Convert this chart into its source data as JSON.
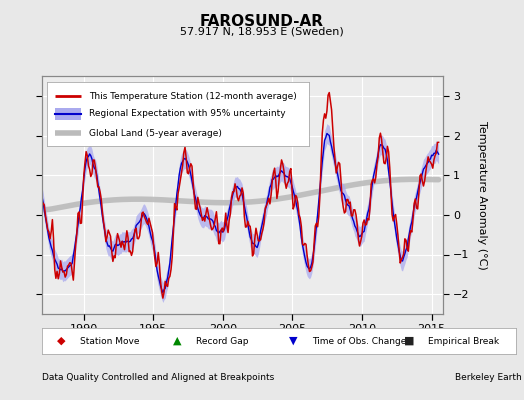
{
  "title": "FAROSUND-AR",
  "subtitle": "57.917 N, 18.953 E (Sweden)",
  "ylabel": "Temperature Anomaly (°C)",
  "footer_left": "Data Quality Controlled and Aligned at Breakpoints",
  "footer_right": "Berkeley Earth",
  "xlim": [
    1987.0,
    2015.8
  ],
  "ylim": [
    -2.5,
    3.5
  ],
  "yticks": [
    -2,
    -1,
    0,
    1,
    2,
    3
  ],
  "xticks": [
    1990,
    1995,
    2000,
    2005,
    2010,
    2015
  ],
  "bg_color": "#e8e8e8",
  "plot_bg_color": "#ececec",
  "grid_color": "#ffffff",
  "station_color": "#cc0000",
  "regional_color": "#0000cc",
  "regional_fill_color": "#aaaaee",
  "global_color": "#bbbbbb",
  "legend_station": "This Temperature Station (12-month average)",
  "legend_regional": "Regional Expectation with 95% uncertainty",
  "legend_global": "Global Land (5-year average)",
  "legend_station_move": "Station Move",
  "legend_record_gap": "Record Gap",
  "legend_obs_change": "Time of Obs. Change",
  "legend_emp_break": "Empirical Break"
}
